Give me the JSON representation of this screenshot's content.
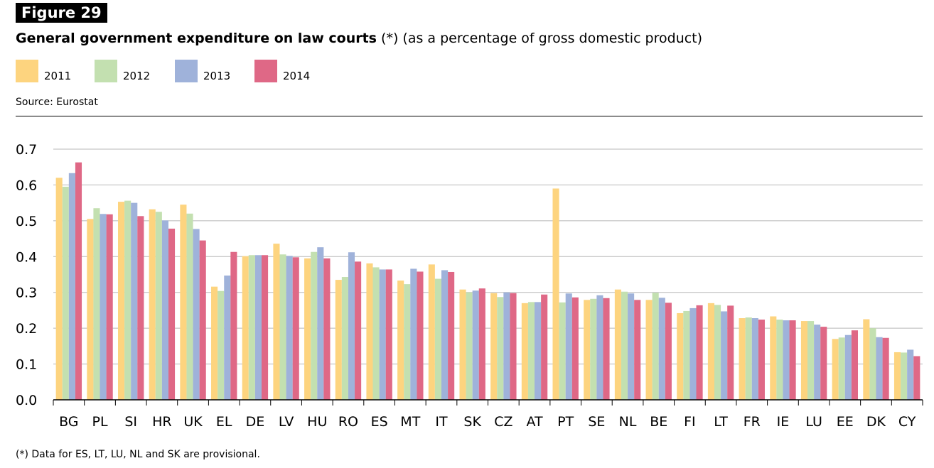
{
  "figure_label": "Figure 29",
  "title_main": "General government expenditure on law courts",
  "title_sub": "(*) (as a percentage of gross domestic product)",
  "source": "Source: Eurostat",
  "footnote": "(*) Data for ES, LT, LU, NL and SK are provisional.",
  "colors": {
    "2011": "#fdd47f",
    "2012": "#c3e0b0",
    "2013": "#9fb2da",
    "2014": "#df6886"
  },
  "chart_data": {
    "type": "bar",
    "categories": [
      "BG",
      "PL",
      "SI",
      "HR",
      "UK",
      "EL",
      "DE",
      "LV",
      "HU",
      "RO",
      "ES",
      "MT",
      "IT",
      "SK",
      "CZ",
      "AT",
      "PT",
      "SE",
      "NL",
      "BE",
      "FI",
      "LT",
      "FR",
      "IE",
      "LU",
      "EE",
      "DK",
      "CY"
    ],
    "series": [
      {
        "name": "2011",
        "values": [
          0.62,
          0.505,
          0.553,
          0.532,
          0.545,
          0.316,
          0.401,
          0.436,
          0.395,
          0.335,
          0.381,
          0.333,
          0.378,
          0.308,
          0.298,
          0.27,
          0.59,
          0.279,
          0.308,
          0.279,
          0.242,
          0.27,
          0.228,
          0.233,
          0.22,
          0.17,
          0.225,
          0.133
        ]
      },
      {
        "name": "2012",
        "values": [
          0.595,
          0.535,
          0.556,
          0.525,
          0.52,
          0.304,
          0.404,
          0.406,
          0.413,
          0.343,
          0.37,
          0.323,
          0.338,
          0.3,
          0.287,
          0.273,
          0.272,
          0.282,
          0.302,
          0.299,
          0.248,
          0.265,
          0.23,
          0.224,
          0.22,
          0.174,
          0.2,
          0.132
        ]
      },
      {
        "name": "2013",
        "values": [
          0.633,
          0.519,
          0.55,
          0.501,
          0.477,
          0.347,
          0.404,
          0.402,
          0.426,
          0.412,
          0.364,
          0.366,
          0.362,
          0.305,
          0.3,
          0.273,
          0.297,
          0.292,
          0.297,
          0.285,
          0.256,
          0.247,
          0.228,
          0.222,
          0.21,
          0.181,
          0.175,
          0.14
        ]
      },
      {
        "name": "2014",
        "values": [
          0.663,
          0.518,
          0.513,
          0.478,
          0.445,
          0.413,
          0.404,
          0.398,
          0.395,
          0.386,
          0.364,
          0.358,
          0.357,
          0.311,
          0.298,
          0.294,
          0.286,
          0.284,
          0.279,
          0.271,
          0.264,
          0.263,
          0.224,
          0.222,
          0.204,
          0.194,
          0.173,
          0.122
        ]
      }
    ],
    "ylim": [
      0,
      0.7
    ],
    "yticks": [
      "0.0",
      "0.1",
      "0.2",
      "0.3",
      "0.4",
      "0.5",
      "0.6",
      "0.7"
    ],
    "grid": true,
    "legend_position": "top-left"
  }
}
